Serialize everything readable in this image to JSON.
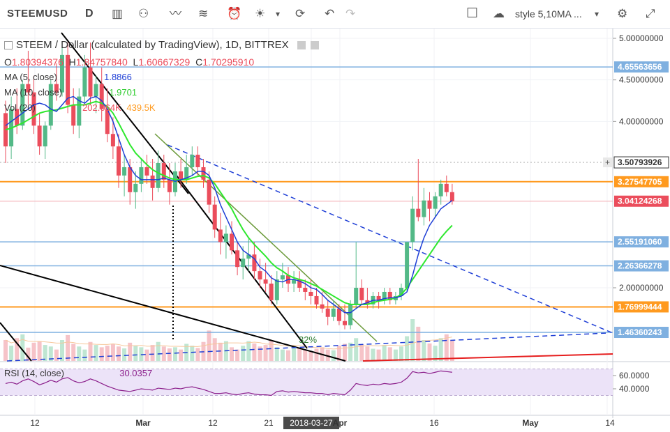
{
  "toolbar": {
    "symbol": "STEEMUSD",
    "interval": "D",
    "style_label": "style 5,10MA ...",
    "icons": [
      "candles-icon",
      "indicators-icon",
      "line-tool-icon",
      "fib-tool-icon",
      "alert-icon",
      "idea-icon",
      "chevron-down-icon",
      "replay-icon",
      "undo-icon",
      "redo-icon",
      "fullscreen-box-icon",
      "cloud-icon",
      "chevron-down-icon",
      "settings-icon",
      "expand-icon"
    ]
  },
  "legend": {
    "title": "STEEM / Dollar (calculated by TradingView), 1D, BITTREX",
    "ohlc": {
      "o": "1.80394376",
      "h": "1.84757840",
      "l": "1.60667329",
      "c": "1.70295910"
    },
    "ma5_label": "MA (5, close)",
    "ma5_value": "1.8866",
    "ma10_label": "MA (10, close)",
    "ma10_value": "1.9701",
    "vol_label": "Vol (20)",
    "vol_value1": "202.064K",
    "vol_value2": "439.5K",
    "rsi_label": "RSI (14, close)",
    "rsi_value": "30.0357"
  },
  "annotation": "32%",
  "colors": {
    "up": "#53b987",
    "down": "#eb4d5c",
    "ma5": "#1f3fd6",
    "ma10": "#2ee82e",
    "orange": "#ff9a1f",
    "blue_level": "#7fb0e0",
    "rsi_fill": "#ece3f8",
    "rsi_line": "#8b1e8b",
    "trend_black": "#000000",
    "trend_green": "#6b9a3a",
    "trend_blue": "#1f3fd6",
    "trend_red": "#e61e1e"
  },
  "chart_data": {
    "type": "candlestick",
    "symbol": "STEEMUSD",
    "timeframe": "1D",
    "price_axis_ticks": [
      "5.00000000",
      "4.50000000",
      "4.00000000",
      "2.00000000"
    ],
    "price_labels": [
      {
        "value": 4.65563656,
        "label": "4.65563656",
        "color": "#7fb0e0"
      },
      {
        "value": 3.50793926,
        "label": "3.50793926",
        "color": "#333333"
      },
      {
        "value": 3.27547705,
        "label": "3.27547705",
        "color": "#ff9a1f"
      },
      {
        "value": 3.04124268,
        "label": "3.04124268",
        "color": "#eb4d5c"
      },
      {
        "value": 2.5519106,
        "label": "2.55191060",
        "color": "#7fb0e0"
      },
      {
        "value": 2.26366278,
        "label": "2.26366278",
        "color": "#7fb0e0"
      },
      {
        "value": 1.76999444,
        "label": "1.76999444",
        "color": "#ff9a1f"
      },
      {
        "value": 1.46360243,
        "label": "1.46360243",
        "color": "#7fb0e0"
      }
    ],
    "time_axis": [
      "12",
      "Mar",
      "12",
      "21",
      "2018-03-27",
      "Apr",
      "16",
      "May",
      "14"
    ],
    "highlighted_date": "2018-03-27",
    "rsi_axis": [
      "60.0000",
      "40.0000"
    ],
    "rsi_bands": [
      70,
      30
    ],
    "candles": [
      [
        4.1,
        4.25,
        3.5,
        3.7
      ],
      [
        3.7,
        4.3,
        3.55,
        4.15
      ],
      [
        4.15,
        4.4,
        3.85,
        3.95
      ],
      [
        3.95,
        4.5,
        3.9,
        4.45
      ],
      [
        4.45,
        4.85,
        4.2,
        4.35
      ],
      [
        4.35,
        4.55,
        3.85,
        3.95
      ],
      [
        3.95,
        4.1,
        3.6,
        3.7
      ],
      [
        3.7,
        4.0,
        3.55,
        3.95
      ],
      [
        3.95,
        4.5,
        3.9,
        4.45
      ],
      [
        4.45,
        4.7,
        4.25,
        4.35
      ],
      [
        4.35,
        4.9,
        4.3,
        4.8
      ],
      [
        4.8,
        4.95,
        4.1,
        4.2
      ],
      [
        4.2,
        4.4,
        3.85,
        3.95
      ],
      [
        3.95,
        4.4,
        3.8,
        4.3
      ],
      [
        4.3,
        4.8,
        4.2,
        4.65
      ],
      [
        4.65,
        4.95,
        4.2,
        4.3
      ],
      [
        4.3,
        4.55,
        4.1,
        4.45
      ],
      [
        4.45,
        4.65,
        4.0,
        4.15
      ],
      [
        4.15,
        4.4,
        3.75,
        3.85
      ],
      [
        3.85,
        4.05,
        3.55,
        3.7
      ],
      [
        3.7,
        3.85,
        3.2,
        3.35
      ],
      [
        3.35,
        3.6,
        3.1,
        3.45
      ],
      [
        3.45,
        3.55,
        3.0,
        3.15
      ],
      [
        3.15,
        3.4,
        2.95,
        3.25
      ],
      [
        3.25,
        3.55,
        3.15,
        3.45
      ],
      [
        3.45,
        3.6,
        3.25,
        3.35
      ],
      [
        3.35,
        3.55,
        3.05,
        3.2
      ],
      [
        3.2,
        3.65,
        3.15,
        3.5
      ],
      [
        3.5,
        3.6,
        3.2,
        3.3
      ],
      [
        3.3,
        3.5,
        3.0,
        3.15
      ],
      [
        3.15,
        3.5,
        3.1,
        3.4
      ],
      [
        3.4,
        3.55,
        3.2,
        3.3
      ],
      [
        3.3,
        3.6,
        3.25,
        3.45
      ],
      [
        3.45,
        3.7,
        3.35,
        3.6
      ],
      [
        3.6,
        3.7,
        3.35,
        3.45
      ],
      [
        3.45,
        3.55,
        3.2,
        3.3
      ],
      [
        3.3,
        3.4,
        2.9,
        3.0
      ],
      [
        3.0,
        3.1,
        2.6,
        2.7
      ],
      [
        2.7,
        2.9,
        2.4,
        2.55
      ],
      [
        2.55,
        2.75,
        2.35,
        2.65
      ],
      [
        2.65,
        2.8,
        2.4,
        2.45
      ],
      [
        2.45,
        2.55,
        2.15,
        2.25
      ],
      [
        2.25,
        2.5,
        2.1,
        2.35
      ],
      [
        2.35,
        2.6,
        2.2,
        2.4
      ],
      [
        2.4,
        2.55,
        2.1,
        2.2
      ],
      [
        2.2,
        2.35,
        2.0,
        2.1
      ],
      [
        2.1,
        2.3,
        1.95,
        2.05
      ],
      [
        2.05,
        2.15,
        1.8,
        1.85
      ],
      [
        1.85,
        2.2,
        1.8,
        2.1
      ],
      [
        2.1,
        2.3,
        2.0,
        2.15
      ],
      [
        2.15,
        2.25,
        1.95,
        2.05
      ],
      [
        2.05,
        2.2,
        1.95,
        2.1
      ],
      [
        2.1,
        2.2,
        1.95,
        2.0
      ],
      [
        2.0,
        2.1,
        1.85,
        1.95
      ],
      [
        1.95,
        2.1,
        1.8,
        1.9
      ],
      [
        1.9,
        2.0,
        1.75,
        1.8
      ],
      [
        1.8,
        1.95,
        1.7,
        1.75
      ],
      [
        1.75,
        1.85,
        1.55,
        1.65
      ],
      [
        1.65,
        1.85,
        1.6,
        1.75
      ],
      [
        1.75,
        1.8,
        1.55,
        1.6
      ],
      [
        1.6,
        1.8,
        1.5,
        1.55
      ],
      [
        1.55,
        1.85,
        1.5,
        1.8
      ],
      [
        1.8,
        2.55,
        1.75,
        2.0
      ],
      [
        2.0,
        2.1,
        1.8,
        1.85
      ],
      [
        1.85,
        2.0,
        1.75,
        1.8
      ],
      [
        1.8,
        1.95,
        1.75,
        1.9
      ],
      [
        1.9,
        1.95,
        1.75,
        1.85
      ],
      [
        1.85,
        2.0,
        1.8,
        1.95
      ],
      [
        1.95,
        2.0,
        1.8,
        1.85
      ],
      [
        1.85,
        1.95,
        1.8,
        1.9
      ],
      [
        1.9,
        2.05,
        1.85,
        2.0
      ],
      [
        2.0,
        2.55,
        1.95,
        2.55
      ],
      [
        2.55,
        3.1,
        2.45,
        2.95
      ],
      [
        2.95,
        3.55,
        2.8,
        2.85
      ],
      [
        2.85,
        3.2,
        2.75,
        3.05
      ],
      [
        3.05,
        3.15,
        2.8,
        2.95
      ],
      [
        2.95,
        3.15,
        2.85,
        3.1
      ],
      [
        3.1,
        3.3,
        3.0,
        3.25
      ],
      [
        3.25,
        3.35,
        3.1,
        3.15
      ],
      [
        3.15,
        3.25,
        3.0,
        3.04
      ]
    ],
    "ma5": [
      3.95,
      4.0,
      4.05,
      4.1,
      4.15,
      4.2,
      4.22,
      4.2,
      4.15,
      4.12,
      4.2,
      4.28,
      4.3,
      4.25,
      4.22,
      4.28,
      4.3,
      4.25,
      4.15,
      4.0,
      3.8,
      3.6,
      3.45,
      3.35,
      3.3,
      3.3,
      3.3,
      3.3,
      3.32,
      3.3,
      3.28,
      3.3,
      3.32,
      3.35,
      3.4,
      3.4,
      3.35,
      3.2,
      3.0,
      2.85,
      2.7,
      2.55,
      2.45,
      2.4,
      2.35,
      2.25,
      2.2,
      2.12,
      2.08,
      2.07,
      2.1,
      2.1,
      2.08,
      2.05,
      2.0,
      1.98,
      1.92,
      1.85,
      1.8,
      1.75,
      1.7,
      1.7,
      1.75,
      1.8,
      1.82,
      1.85,
      1.85,
      1.87,
      1.88,
      1.88,
      1.9,
      1.95,
      2.15,
      2.4,
      2.6,
      2.75,
      2.85,
      2.95,
      3.0,
      3.05
    ],
    "ma10": [
      3.9,
      3.92,
      3.95,
      3.98,
      4.02,
      4.06,
      4.1,
      4.12,
      4.13,
      4.14,
      4.16,
      4.18,
      4.2,
      4.2,
      4.2,
      4.22,
      4.24,
      4.22,
      4.18,
      4.1,
      3.98,
      3.85,
      3.72,
      3.62,
      3.55,
      3.48,
      3.42,
      3.38,
      3.35,
      3.32,
      3.3,
      3.3,
      3.3,
      3.32,
      3.34,
      3.35,
      3.32,
      3.25,
      3.15,
      3.05,
      2.95,
      2.82,
      2.7,
      2.6,
      2.52,
      2.45,
      2.38,
      2.3,
      2.24,
      2.2,
      2.15,
      2.12,
      2.1,
      2.08,
      2.05,
      2.02,
      1.98,
      1.94,
      1.9,
      1.86,
      1.82,
      1.8,
      1.8,
      1.8,
      1.8,
      1.82,
      1.84,
      1.85,
      1.86,
      1.88,
      1.92,
      2.0,
      2.1,
      2.2,
      2.3,
      2.4,
      2.5,
      2.6,
      2.68,
      2.75
    ],
    "volume": [
      55,
      40,
      60,
      70,
      35,
      48,
      52,
      42,
      38,
      30,
      55,
      68,
      45,
      38,
      30,
      50,
      42,
      36,
      40,
      45,
      38,
      33,
      48,
      40,
      36,
      30,
      42,
      50,
      38,
      33,
      36,
      30,
      45,
      40,
      34,
      50,
      80,
      60,
      48,
      52,
      36,
      30,
      40,
      52,
      46,
      38,
      42,
      55,
      36,
      30,
      28,
      40,
      34,
      30,
      26,
      32,
      36,
      30,
      28,
      40,
      45,
      48,
      60,
      44,
      38,
      32,
      30,
      42,
      36,
      30,
      38,
      65,
      110,
      90,
      55,
      46,
      40,
      60,
      70,
      55
    ],
    "rsi": [
      48,
      50,
      47,
      52,
      55,
      51,
      46,
      49,
      53,
      50,
      55,
      57,
      52,
      49,
      51,
      55,
      52,
      48,
      44,
      41,
      38,
      37,
      36,
      38,
      40,
      39,
      38,
      41,
      40,
      39,
      41,
      40,
      42,
      43,
      41,
      39,
      36,
      33,
      33,
      34,
      32,
      31,
      33,
      34,
      32,
      31,
      31,
      30,
      36,
      37,
      35,
      36,
      35,
      34,
      34,
      33,
      33,
      31,
      33,
      32,
      31,
      38,
      48,
      46,
      45,
      47,
      46,
      48,
      47,
      48,
      50,
      56,
      66,
      64,
      65,
      63,
      65,
      67,
      66,
      65
    ]
  }
}
